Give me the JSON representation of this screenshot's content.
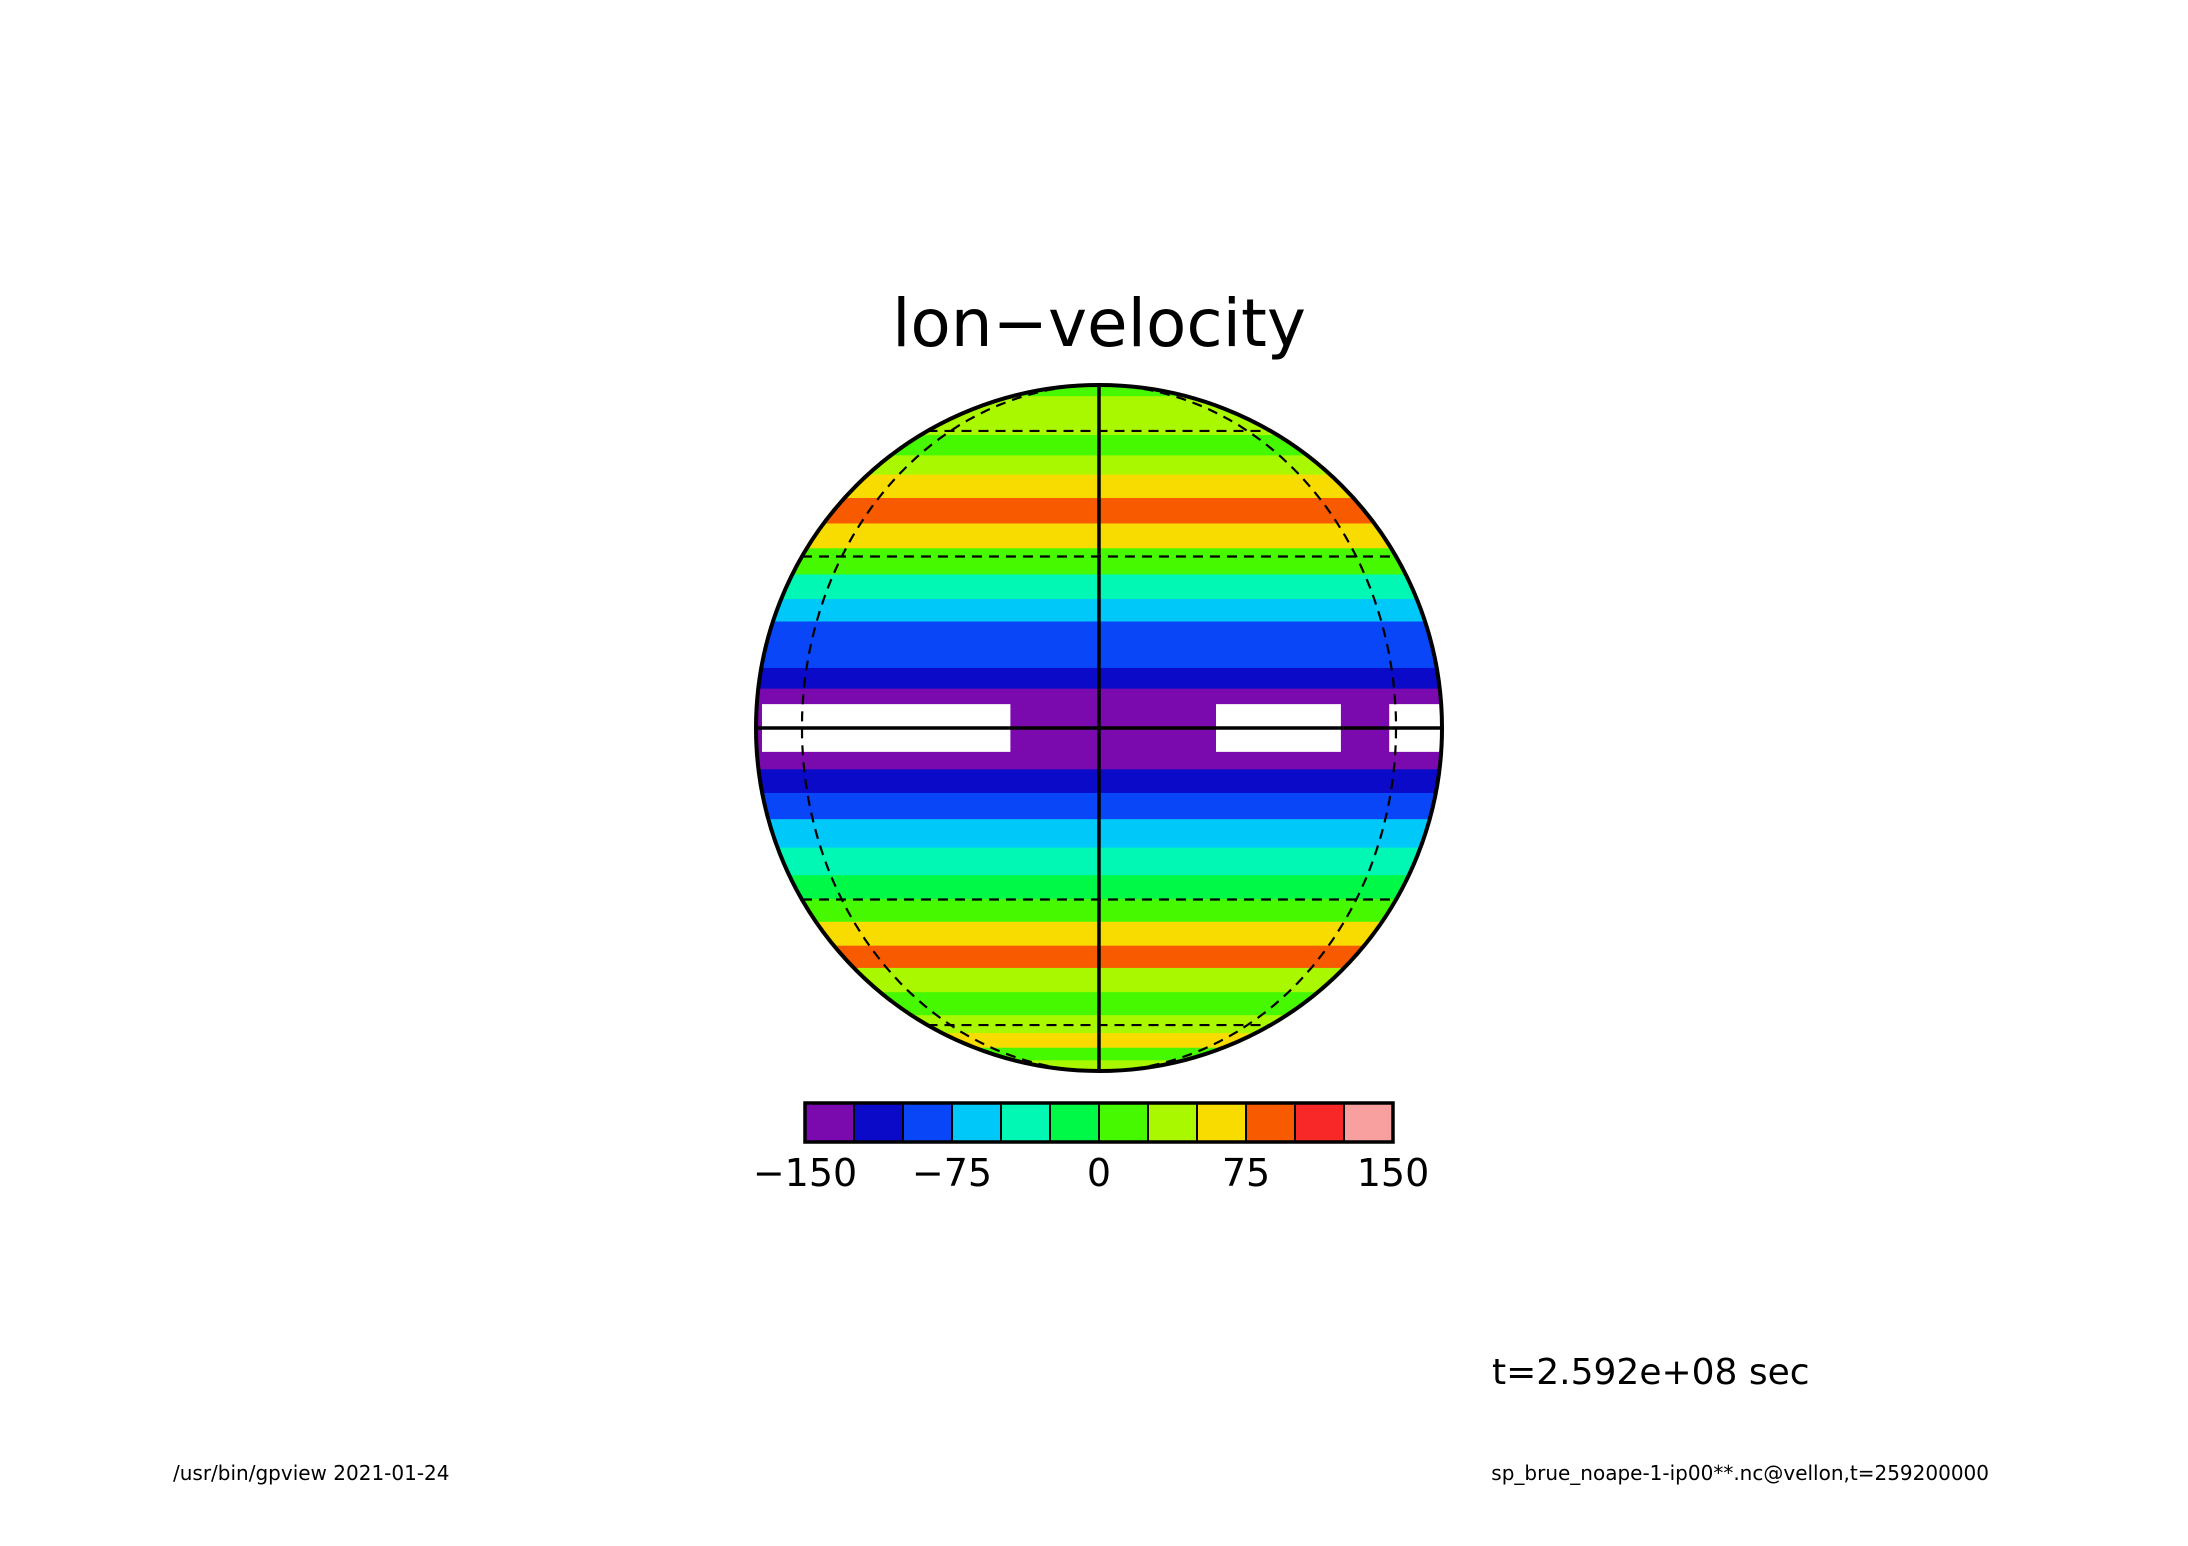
{
  "chart_data": {
    "type": "heatmap",
    "projection": "orthographic",
    "title": "lon−velocity",
    "colorbar": {
      "colors": [
        "#7B0AAE",
        "#0A0AC8",
        "#0846F8",
        "#00C8F8",
        "#00F8B4",
        "#00F846",
        "#46F800",
        "#AAF800",
        "#F8DC00",
        "#F85A00",
        "#F82828",
        "#F8A0A0"
      ],
      "tick_labels": [
        "−150",
        "−75",
        "0",
        "75",
        "150"
      ],
      "ticks": [
        -150,
        -75,
        0,
        75,
        150
      ],
      "range": [
        -150,
        150
      ],
      "step": 25
    },
    "undefined_color": "#FFFFFF",
    "zonal_bands": [
      {
        "lat": 90,
        "value": 20
      },
      {
        "lat": 80,
        "value": 15
      },
      {
        "lat": 70,
        "value": 25
      },
      {
        "lat": 62,
        "value": 30
      },
      {
        "lat": 55,
        "value": 20
      },
      {
        "lat": 50,
        "value": 40
      },
      {
        "lat": 45,
        "value": 55
      },
      {
        "lat": 39,
        "value": 75
      },
      {
        "lat": 34,
        "value": 55
      },
      {
        "lat": 29,
        "value": 5
      },
      {
        "lat": 24,
        "value": -40
      },
      {
        "lat": 20,
        "value": -60
      },
      {
        "lat": 16,
        "value": -85
      },
      {
        "lat": 12,
        "value": -100
      },
      {
        "lat": 8,
        "value": -120
      },
      {
        "lat": 5,
        "value": -140
      },
      {
        "lat": 0,
        "value": -150
      },
      {
        "lat": -5,
        "value": -140
      },
      {
        "lat": -9,
        "value": -115
      },
      {
        "lat": -13,
        "value": -95
      },
      {
        "lat": -18,
        "value": -70
      },
      {
        "lat": -23,
        "value": -45
      },
      {
        "lat": -28,
        "value": -20
      },
      {
        "lat": -32,
        "value": 20
      },
      {
        "lat": -37,
        "value": 55
      },
      {
        "lat": -42,
        "value": 75
      },
      {
        "lat": -47,
        "value": 40
      },
      {
        "lat": -54,
        "value": 20
      },
      {
        "lat": -60,
        "value": 30
      },
      {
        "lat": -66,
        "value": 50
      },
      {
        "lat": -72,
        "value": 20
      },
      {
        "lat": -80,
        "value": 25
      },
      {
        "lat": -90,
        "value": 20
      }
    ],
    "equatorial_undefined_regions": [
      {
        "lon_start": -80,
        "lon_end": -15
      },
      {
        "lon_start": 20,
        "lon_end": 45
      },
      {
        "lon_start": 58,
        "lon_end": 88
      }
    ],
    "grid": {
      "latitudes": [
        -60,
        -30,
        0,
        30,
        60
      ],
      "longitudes": [
        -60,
        0,
        60
      ]
    }
  },
  "annotations": {
    "time_label": "t=2.592e+08 sec",
    "footer_left": "/usr/bin/gpview  2021-01-24",
    "footer_right": "sp_brue_noape-1-ip00**.nc@vellon,t=259200000"
  }
}
